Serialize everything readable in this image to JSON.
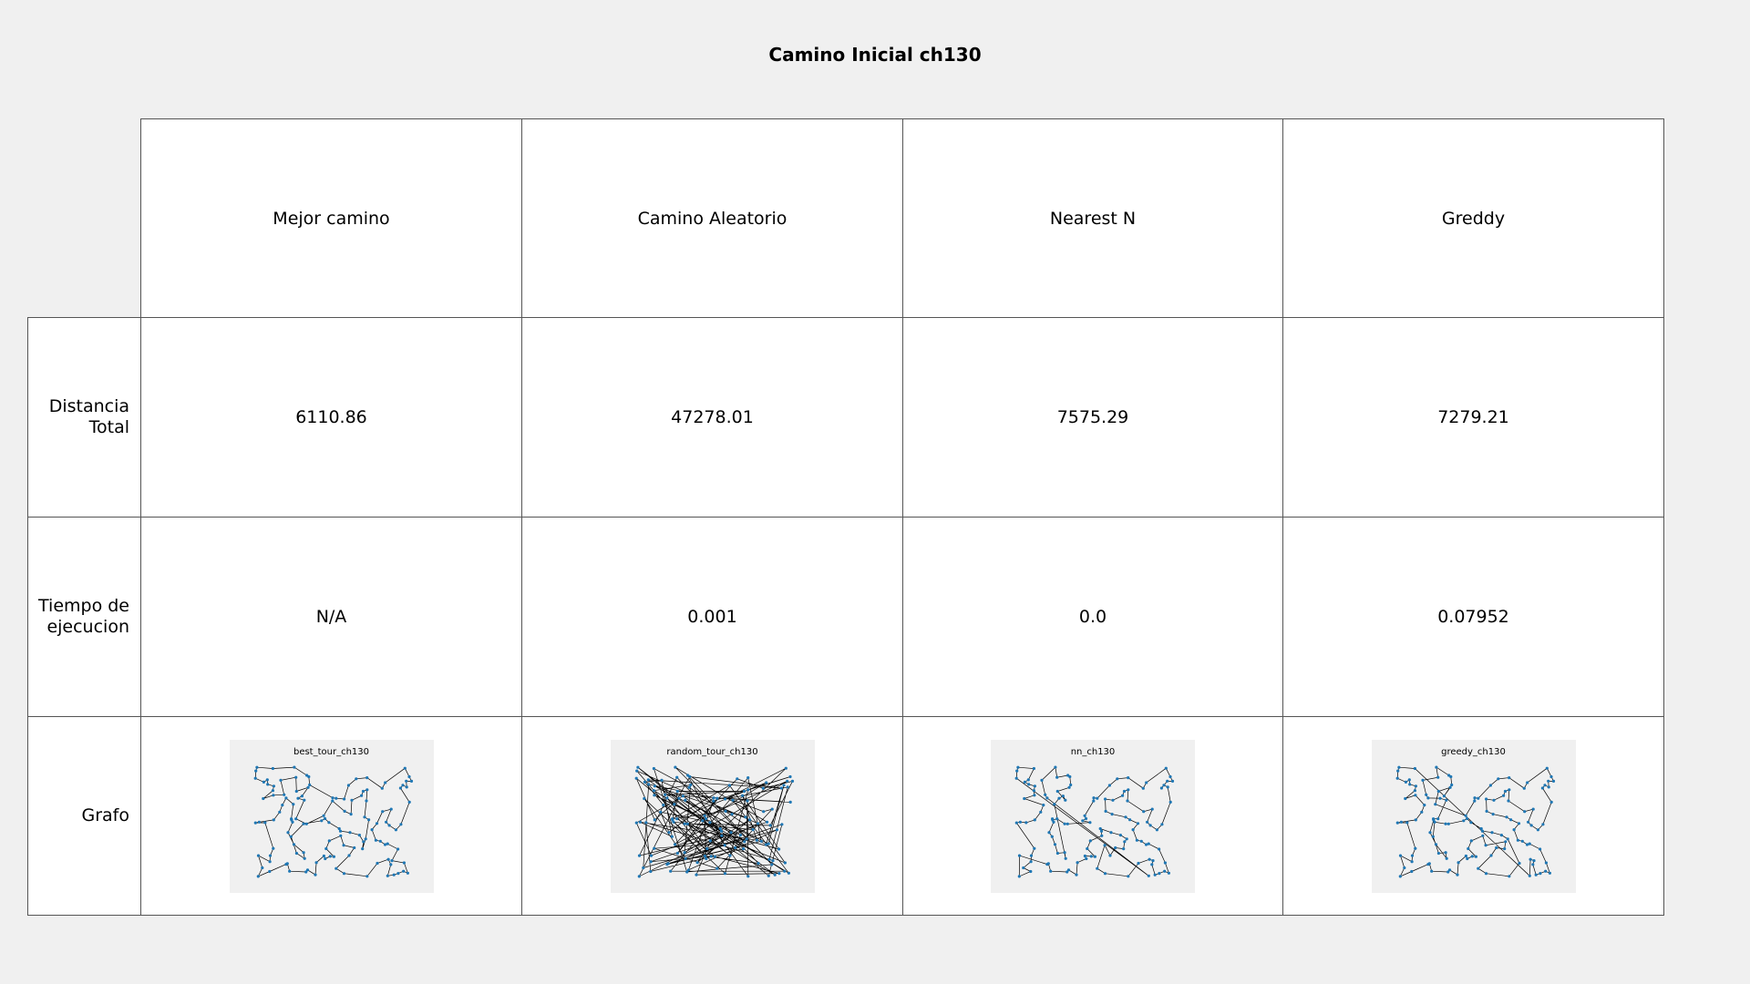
{
  "chart_data": {
    "type": "table",
    "title": "Camino Inicial ch130",
    "columns": [
      "Mejor camino",
      "Camino Aleatorio",
      "Nearest N",
      "Greddy"
    ],
    "rows": [
      {
        "label": "Distancia Total",
        "label_lines": [
          "Distancia",
          "Total"
        ],
        "values": [
          "6110.86",
          "47278.01",
          "7575.29",
          "7279.21"
        ]
      },
      {
        "label": "Tiempo de ejecucion",
        "label_lines": [
          "Tiempo de",
          "ejecucion"
        ],
        "values": [
          "N/A",
          "0.001",
          "0.0",
          "0.07952"
        ]
      },
      {
        "label": "Grafo",
        "label_lines": [
          "Grafo"
        ],
        "thumbnails": [
          "best_tour_ch130",
          "random_tour_ch130",
          "nn_ch130",
          "greedy_ch130"
        ]
      }
    ]
  },
  "colors": {
    "background": "#f0f0f0",
    "cell": "#ffffff",
    "node": "#1f77b4",
    "edge": "#000000"
  }
}
